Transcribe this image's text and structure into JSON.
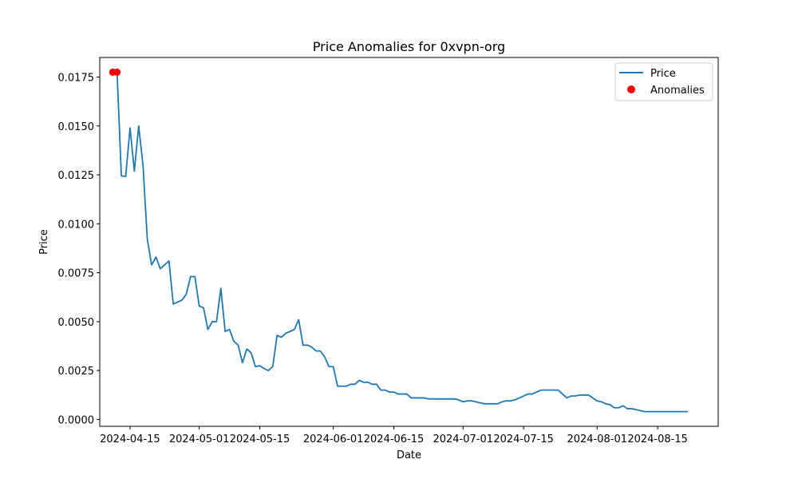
{
  "chart_data": {
    "type": "line",
    "title": "Price Anomalies for 0xvpn-org",
    "xlabel": "Date",
    "ylabel": "Price",
    "x_ticks": [
      "2024-04-15",
      "2024-05-01",
      "2024-05-15",
      "2024-06-01",
      "2024-06-15",
      "2024-07-01",
      "2024-07-15",
      "2024-08-01",
      "2024-08-15"
    ],
    "y_ticks": [
      "0.0000",
      "0.0025",
      "0.0050",
      "0.0075",
      "0.0100",
      "0.0125",
      "0.0150",
      "0.0175"
    ],
    "xlim": [
      "2024-04-08",
      "2024-08-29"
    ],
    "ylim": [
      -0.00035,
      0.0185
    ],
    "grid": false,
    "legend_position": "top-right",
    "colors": {
      "price": "#1f77b4",
      "anomalies": "#ff0000"
    },
    "series": [
      {
        "name": "Price",
        "kind": "line",
        "points": [
          [
            "2024-04-11",
            0.01775
          ],
          [
            "2024-04-12",
            0.01775
          ],
          [
            "2024-04-13",
            0.01245
          ],
          [
            "2024-04-14",
            0.01242
          ],
          [
            "2024-04-15",
            0.0149
          ],
          [
            "2024-04-16",
            0.0127
          ],
          [
            "2024-04-17",
            0.015
          ],
          [
            "2024-04-18",
            0.013
          ],
          [
            "2024-04-19",
            0.0092
          ],
          [
            "2024-04-20",
            0.0079
          ],
          [
            "2024-04-21",
            0.0083
          ],
          [
            "2024-04-22",
            0.0077
          ],
          [
            "2024-04-23",
            0.0079
          ],
          [
            "2024-04-24",
            0.0081
          ],
          [
            "2024-04-25",
            0.0059
          ],
          [
            "2024-04-26",
            0.006
          ],
          [
            "2024-04-27",
            0.0061
          ],
          [
            "2024-04-28",
            0.0064
          ],
          [
            "2024-04-29",
            0.0073
          ],
          [
            "2024-04-30",
            0.0073
          ],
          [
            "2024-05-01",
            0.0058
          ],
          [
            "2024-05-02",
            0.0057
          ],
          [
            "2024-05-03",
            0.0046
          ],
          [
            "2024-05-04",
            0.005
          ],
          [
            "2024-05-05",
            0.005
          ],
          [
            "2024-05-06",
            0.0067
          ],
          [
            "2024-05-07",
            0.0045
          ],
          [
            "2024-05-08",
            0.0046
          ],
          [
            "2024-05-09",
            0.004
          ],
          [
            "2024-05-10",
            0.0038
          ],
          [
            "2024-05-11",
            0.0029
          ],
          [
            "2024-05-12",
            0.0036
          ],
          [
            "2024-05-13",
            0.0034
          ],
          [
            "2024-05-14",
            0.0027
          ],
          [
            "2024-05-15",
            0.00275
          ],
          [
            "2024-05-16",
            0.0026
          ],
          [
            "2024-05-17",
            0.0025
          ],
          [
            "2024-05-18",
            0.0027
          ],
          [
            "2024-05-19",
            0.0043
          ],
          [
            "2024-05-20",
            0.0042
          ],
          [
            "2024-05-21",
            0.0044
          ],
          [
            "2024-05-22",
            0.0045
          ],
          [
            "2024-05-23",
            0.0046
          ],
          [
            "2024-05-24",
            0.0051
          ],
          [
            "2024-05-25",
            0.0038
          ],
          [
            "2024-05-26",
            0.0038
          ],
          [
            "2024-05-27",
            0.0037
          ],
          [
            "2024-05-28",
            0.0035
          ],
          [
            "2024-05-29",
            0.0035
          ],
          [
            "2024-05-30",
            0.0032
          ],
          [
            "2024-05-31",
            0.0027
          ],
          [
            "2024-06-01",
            0.0027
          ],
          [
            "2024-06-02",
            0.0017
          ],
          [
            "2024-06-03",
            0.0017
          ],
          [
            "2024-06-04",
            0.0017
          ],
          [
            "2024-06-05",
            0.0018
          ],
          [
            "2024-06-06",
            0.0018
          ],
          [
            "2024-06-07",
            0.002
          ],
          [
            "2024-06-08",
            0.0019
          ],
          [
            "2024-06-09",
            0.0019
          ],
          [
            "2024-06-10",
            0.0018
          ],
          [
            "2024-06-11",
            0.0018
          ],
          [
            "2024-06-12",
            0.0015
          ],
          [
            "2024-06-13",
            0.0015
          ],
          [
            "2024-06-14",
            0.0014
          ],
          [
            "2024-06-15",
            0.0014
          ],
          [
            "2024-06-16",
            0.0013
          ],
          [
            "2024-06-17",
            0.0013
          ],
          [
            "2024-06-18",
            0.0013
          ],
          [
            "2024-06-19",
            0.0011
          ],
          [
            "2024-06-20",
            0.0011
          ],
          [
            "2024-06-21",
            0.0011
          ],
          [
            "2024-06-22",
            0.0011
          ],
          [
            "2024-06-23",
            0.00105
          ],
          [
            "2024-06-24",
            0.00105
          ],
          [
            "2024-06-25",
            0.00105
          ],
          [
            "2024-06-26",
            0.00105
          ],
          [
            "2024-06-27",
            0.00105
          ],
          [
            "2024-06-28",
            0.00105
          ],
          [
            "2024-06-29",
            0.00105
          ],
          [
            "2024-06-30",
            0.001
          ],
          [
            "2024-07-01",
            0.0009
          ],
          [
            "2024-07-02",
            0.00095
          ],
          [
            "2024-07-03",
            0.00095
          ],
          [
            "2024-07-04",
            0.0009
          ],
          [
            "2024-07-05",
            0.00085
          ],
          [
            "2024-07-06",
            0.0008
          ],
          [
            "2024-07-07",
            0.0008
          ],
          [
            "2024-07-08",
            0.0008
          ],
          [
            "2024-07-09",
            0.0008
          ],
          [
            "2024-07-10",
            0.0009
          ],
          [
            "2024-07-11",
            0.00095
          ],
          [
            "2024-07-12",
            0.00095
          ],
          [
            "2024-07-13",
            0.001
          ],
          [
            "2024-07-14",
            0.0011
          ],
          [
            "2024-07-15",
            0.0012
          ],
          [
            "2024-07-16",
            0.0013
          ],
          [
            "2024-07-17",
            0.0013
          ],
          [
            "2024-07-18",
            0.0014
          ],
          [
            "2024-07-19",
            0.0015
          ],
          [
            "2024-07-20",
            0.0015
          ],
          [
            "2024-07-21",
            0.0015
          ],
          [
            "2024-07-22",
            0.0015
          ],
          [
            "2024-07-23",
            0.0015
          ],
          [
            "2024-07-24",
            0.0013
          ],
          [
            "2024-07-25",
            0.0011
          ],
          [
            "2024-07-26",
            0.0012
          ],
          [
            "2024-07-27",
            0.0012
          ],
          [
            "2024-07-28",
            0.00125
          ],
          [
            "2024-07-29",
            0.00125
          ],
          [
            "2024-07-30",
            0.00125
          ],
          [
            "2024-07-31",
            0.0011
          ],
          [
            "2024-08-01",
            0.00095
          ],
          [
            "2024-08-02",
            0.0009
          ],
          [
            "2024-08-03",
            0.0008
          ],
          [
            "2024-08-04",
            0.00075
          ],
          [
            "2024-08-05",
            0.0006
          ],
          [
            "2024-08-06",
            0.0006
          ],
          [
            "2024-08-07",
            0.0007
          ],
          [
            "2024-08-08",
            0.00055
          ],
          [
            "2024-08-09",
            0.00055
          ],
          [
            "2024-08-10",
            0.0005
          ],
          [
            "2024-08-11",
            0.00045
          ],
          [
            "2024-08-12",
            0.0004
          ],
          [
            "2024-08-13",
            0.0004
          ],
          [
            "2024-08-14",
            0.0004
          ],
          [
            "2024-08-15",
            0.0004
          ],
          [
            "2024-08-16",
            0.0004
          ],
          [
            "2024-08-17",
            0.0004
          ],
          [
            "2024-08-18",
            0.0004
          ],
          [
            "2024-08-19",
            0.0004
          ],
          [
            "2024-08-20",
            0.0004
          ],
          [
            "2024-08-21",
            0.0004
          ],
          [
            "2024-08-22",
            0.0004
          ]
        ]
      },
      {
        "name": "Anomalies",
        "kind": "scatter",
        "points": [
          [
            "2024-04-11",
            0.01775
          ],
          [
            "2024-04-12",
            0.01775
          ]
        ]
      }
    ]
  }
}
